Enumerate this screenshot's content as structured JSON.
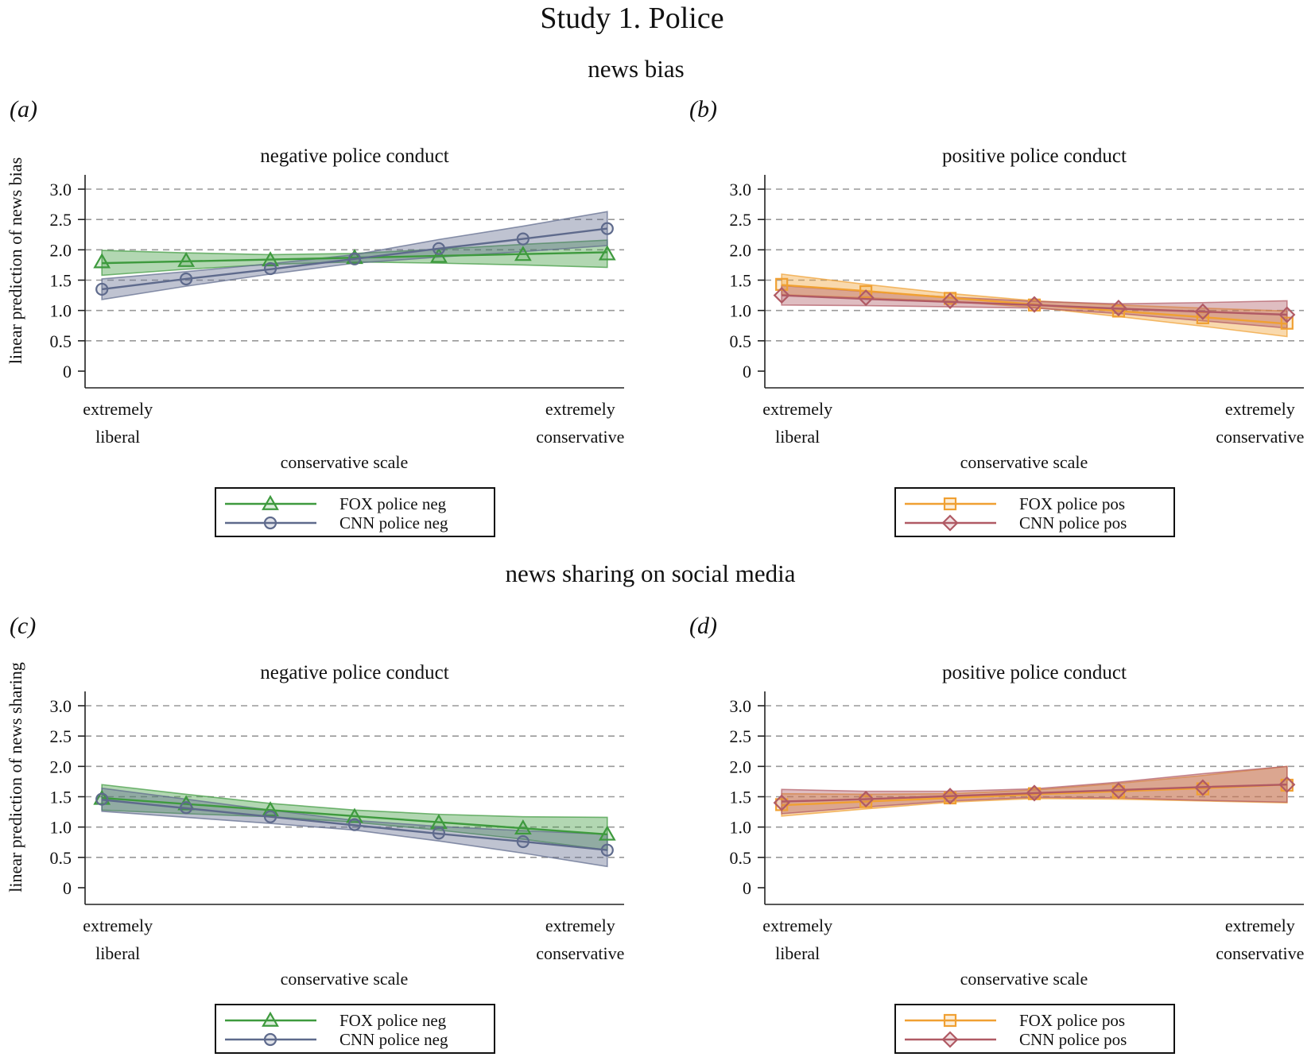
{
  "figure": {
    "title": "Study 1. Police",
    "section_top": "news bias",
    "section_bottom": "news sharing on social media"
  },
  "colors": {
    "fox_neg": "#3e9a3e",
    "cnn_neg": "#5e6a8c",
    "fox_pos": "#f0a032",
    "cnn_pos": "#b05a64",
    "grid": "#999999",
    "axis": "#222222"
  },
  "chart_data": [
    {
      "type": "line",
      "panel_letter": "a",
      "title": "negative police conduct",
      "xlabel": "conservative scale",
      "ylabel": "linear prediction of news bias",
      "x_ticks": [
        {
          "x": 1,
          "lines": [
            "extremely",
            "liberal"
          ]
        },
        {
          "x": 7,
          "lines": [
            "extremely",
            "conservative"
          ]
        }
      ],
      "x": [
        1,
        2,
        3,
        4,
        5,
        6,
        7
      ],
      "xlim": [
        0.8,
        7.2
      ],
      "ylim": [
        0,
        3.0
      ],
      "y_ticks": [
        "0",
        "0.5",
        "1.0",
        "1.5",
        "2.0",
        "2.5",
        "3.0"
      ],
      "grid": "dashed horizontal",
      "legend": "below",
      "series": [
        {
          "name": "FOX police neg",
          "marker": "triangle",
          "color": "#3e9a3e",
          "values": [
            1.8,
            1.82,
            1.83,
            1.87,
            1.89,
            1.92,
            1.93
          ],
          "fit": [
            1.78,
            1.81,
            1.84,
            1.87,
            1.9,
            1.93,
            1.96
          ],
          "ci_low": [
            1.58,
            1.68,
            1.76,
            1.8,
            1.78,
            1.75,
            1.71
          ],
          "ci_high": [
            1.99,
            1.95,
            1.92,
            1.94,
            2.01,
            2.09,
            2.16
          ]
        },
        {
          "name": "CNN police neg",
          "marker": "circle",
          "color": "#5e6a8c",
          "values": [
            1.35,
            1.52,
            1.69,
            1.85,
            2.02,
            2.18,
            2.35
          ],
          "fit": [
            1.35,
            1.52,
            1.68,
            1.85,
            2.02,
            2.18,
            2.35
          ],
          "ci_low": [
            1.18,
            1.4,
            1.6,
            1.78,
            1.88,
            1.97,
            2.07
          ],
          "ci_high": [
            1.52,
            1.64,
            1.77,
            1.92,
            2.17,
            2.39,
            2.63
          ]
        }
      ]
    },
    {
      "type": "line",
      "panel_letter": "b",
      "title": "positive police conduct",
      "xlabel": "conservative scale",
      "ylabel": "",
      "x_ticks": [
        {
          "x": 1,
          "lines": [
            "extremely",
            "liberal"
          ]
        },
        {
          "x": 7,
          "lines": [
            "extremely",
            "conservative"
          ]
        }
      ],
      "x": [
        1,
        2,
        3,
        4,
        5,
        6,
        7
      ],
      "xlim": [
        0.8,
        7.2
      ],
      "ylim": [
        0,
        3.0
      ],
      "y_ticks": [
        "0",
        "0.5",
        "1.0",
        "1.5",
        "2.0",
        "2.5",
        "3.0"
      ],
      "grid": "dashed horizontal",
      "legend": "below",
      "series": [
        {
          "name": "FOX police pos",
          "marker": "square",
          "color": "#f0a032",
          "values": [
            1.43,
            1.31,
            1.2,
            1.09,
            0.99,
            0.88,
            0.79
          ],
          "fit": [
            1.42,
            1.32,
            1.21,
            1.1,
            0.99,
            0.89,
            0.78
          ],
          "ci_low": [
            1.26,
            1.21,
            1.15,
            1.05,
            0.9,
            0.74,
            0.57
          ],
          "ci_high": [
            1.6,
            1.43,
            1.28,
            1.16,
            1.09,
            1.04,
            0.99
          ]
        },
        {
          "name": "CNN police pos",
          "marker": "diamond",
          "color": "#b05a64",
          "values": [
            1.25,
            1.21,
            1.16,
            1.1,
            1.04,
            0.98,
            0.93
          ],
          "fit": [
            1.25,
            1.19,
            1.14,
            1.09,
            1.03,
            0.98,
            0.93
          ],
          "ci_low": [
            1.09,
            1.08,
            1.06,
            1.04,
            0.95,
            0.83,
            0.71
          ],
          "ci_high": [
            1.41,
            1.31,
            1.22,
            1.15,
            1.11,
            1.13,
            1.16
          ]
        }
      ]
    },
    {
      "type": "line",
      "panel_letter": "c",
      "title": "negative police conduct",
      "xlabel": "conservative scale",
      "ylabel": "linear prediction of news sharing",
      "x_ticks": [
        {
          "x": 1,
          "lines": [
            "extremely",
            "liberal"
          ]
        },
        {
          "x": 7,
          "lines": [
            "extremely",
            "conservative"
          ]
        }
      ],
      "x": [
        1,
        2,
        3,
        4,
        5,
        6,
        7
      ],
      "xlim": [
        0.8,
        7.2
      ],
      "ylim": [
        0,
        3.0
      ],
      "y_ticks": [
        "0",
        "0.5",
        "1.0",
        "1.5",
        "2.0",
        "2.5",
        "3.0"
      ],
      "grid": "dashed horizontal",
      "legend": "below",
      "series": [
        {
          "name": "FOX police neg",
          "marker": "triangle",
          "color": "#3e9a3e",
          "values": [
            1.47,
            1.38,
            1.28,
            1.17,
            1.07,
            0.98,
            0.88
          ],
          "fit": [
            1.48,
            1.38,
            1.28,
            1.18,
            1.08,
            0.98,
            0.88
          ],
          "ci_low": [
            1.28,
            1.22,
            1.17,
            1.08,
            0.95,
            0.8,
            0.62
          ],
          "ci_high": [
            1.7,
            1.54,
            1.39,
            1.28,
            1.21,
            1.17,
            1.16
          ]
        },
        {
          "name": "CNN police neg",
          "marker": "circle",
          "color": "#5e6a8c",
          "values": [
            1.46,
            1.32,
            1.17,
            1.04,
            0.9,
            0.76,
            0.62
          ],
          "fit": [
            1.45,
            1.31,
            1.17,
            1.03,
            0.89,
            0.76,
            0.62
          ],
          "ci_low": [
            1.26,
            1.16,
            1.06,
            0.95,
            0.77,
            0.57,
            0.35
          ],
          "ci_high": [
            1.64,
            1.46,
            1.28,
            1.11,
            1.01,
            0.94,
            0.88
          ]
        }
      ]
    },
    {
      "type": "line",
      "panel_letter": "d",
      "title": "positive police conduct",
      "xlabel": "conservative scale",
      "ylabel": "",
      "x_ticks": [
        {
          "x": 1,
          "lines": [
            "extremely",
            "liberal"
          ]
        },
        {
          "x": 7,
          "lines": [
            "extremely",
            "conservative"
          ]
        }
      ],
      "x": [
        1,
        2,
        3,
        4,
        5,
        6,
        7
      ],
      "xlim": [
        0.8,
        7.2
      ],
      "ylim": [
        0,
        3.0
      ],
      "y_ticks": [
        "0",
        "0.5",
        "1.0",
        "1.5",
        "2.0",
        "2.5",
        "3.0"
      ],
      "grid": "dashed horizontal",
      "legend": "below",
      "series": [
        {
          "name": "FOX police pos",
          "marker": "square",
          "color": "#f0a032",
          "values": [
            1.37,
            1.42,
            1.48,
            1.55,
            1.58,
            1.63,
            1.69
          ],
          "fit": [
            1.36,
            1.42,
            1.48,
            1.54,
            1.59,
            1.64,
            1.7
          ],
          "ci_low": [
            1.18,
            1.3,
            1.41,
            1.47,
            1.46,
            1.43,
            1.4
          ],
          "ci_high": [
            1.55,
            1.54,
            1.55,
            1.61,
            1.72,
            1.85,
            2.0
          ]
        },
        {
          "name": "CNN police pos",
          "marker": "diamond",
          "color": "#b05a64",
          "values": [
            1.4,
            1.46,
            1.51,
            1.56,
            1.6,
            1.65,
            1.7
          ],
          "fit": [
            1.42,
            1.46,
            1.51,
            1.56,
            1.61,
            1.66,
            1.7
          ],
          "ci_low": [
            1.22,
            1.33,
            1.43,
            1.49,
            1.48,
            1.44,
            1.41
          ],
          "ci_high": [
            1.62,
            1.59,
            1.59,
            1.63,
            1.74,
            1.88,
            2.0
          ]
        }
      ]
    }
  ]
}
